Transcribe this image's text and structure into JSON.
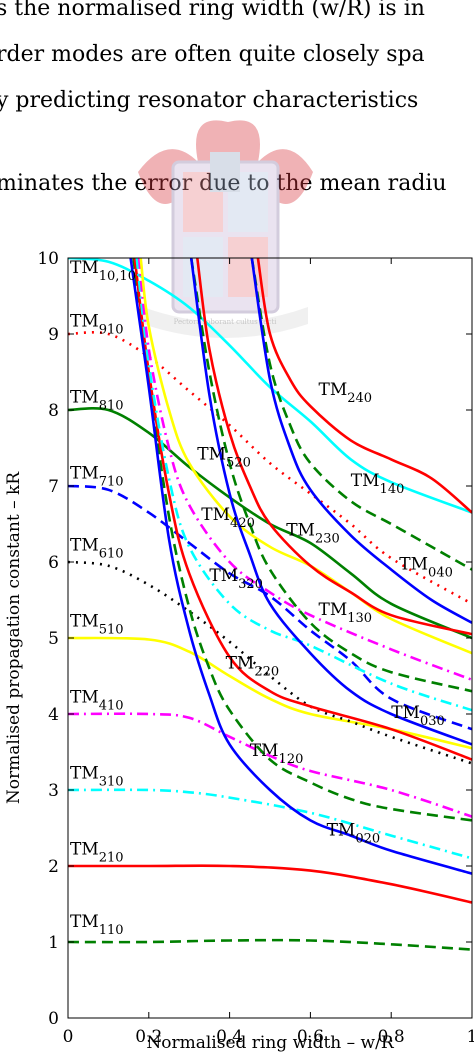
{
  "text_lines": [
    "s the normalised ring width (w/R) is in",
    "rder modes are often quite closely spa",
    "y predicting resonator characteristics",
    "minates the error due to the mean radiu"
  ],
  "watermark_motto": "Pectora roborant cultus recti",
  "chart_data": {
    "type": "line",
    "title": "",
    "xlabel": "Normalised ring width – w/R",
    "ylabel": "Normalised propagation constant – kR",
    "xlim": [
      0,
      1
    ],
    "ylim": [
      0,
      10
    ],
    "x_ticks": [
      "0",
      "0.2",
      "0.4",
      "0.6",
      "0.8",
      "1"
    ],
    "y_ticks": [
      "0",
      "1",
      "2",
      "3",
      "4",
      "5",
      "6",
      "7",
      "8",
      "9",
      "10"
    ],
    "grid": false,
    "colors": {
      "1": "#008000",
      "2": "#ff0000",
      "3": "#00ffff",
      "4": "#ff00ff",
      "5": "#ffff00",
      "6": "#000000",
      "7": "#0000ff",
      "8": "#008000",
      "9": "#ff0000",
      "10": "#00ffff"
    },
    "series": [
      {
        "name": "TM110",
        "main": "TM",
        "sub": "110",
        "m": 1,
        "style": "dashed",
        "points": [
          [
            0,
            1.0
          ],
          [
            0.2,
            1.0
          ],
          [
            0.4,
            1.02
          ],
          [
            0.6,
            1.02
          ],
          [
            0.8,
            0.97
          ],
          [
            1.0,
            0.9
          ]
        ]
      },
      {
        "name": "TM210",
        "main": "TM",
        "sub": "210",
        "m": 2,
        "style": "solid",
        "points": [
          [
            0,
            2.0
          ],
          [
            0.2,
            2.0
          ],
          [
            0.4,
            2.0
          ],
          [
            0.6,
            1.94
          ],
          [
            0.8,
            1.76
          ],
          [
            1.0,
            1.52
          ]
        ]
      },
      {
        "name": "TM310",
        "main": "TM",
        "sub": "310",
        "m": 3,
        "style": "dashdot",
        "points": [
          [
            0,
            3.0
          ],
          [
            0.2,
            3.0
          ],
          [
            0.3,
            2.97
          ],
          [
            0.4,
            2.9
          ],
          [
            0.6,
            2.7
          ],
          [
            0.8,
            2.4
          ],
          [
            1.0,
            2.1
          ]
        ]
      },
      {
        "name": "TM410",
        "main": "TM",
        "sub": "410",
        "m": 4,
        "style": "dashdot",
        "points": [
          [
            0,
            4.0
          ],
          [
            0.2,
            4.0
          ],
          [
            0.3,
            3.95
          ],
          [
            0.4,
            3.7
          ],
          [
            0.5,
            3.45
          ],
          [
            0.6,
            3.25
          ],
          [
            0.8,
            3.0
          ],
          [
            1.0,
            2.65
          ]
        ]
      },
      {
        "name": "TM510",
        "main": "TM",
        "sub": "510",
        "m": 5,
        "style": "solid",
        "points": [
          [
            0,
            5.0
          ],
          [
            0.2,
            4.98
          ],
          [
            0.3,
            4.82
          ],
          [
            0.4,
            4.5
          ],
          [
            0.5,
            4.2
          ],
          [
            0.6,
            4.0
          ],
          [
            0.8,
            3.8
          ],
          [
            1.0,
            3.55
          ]
        ]
      },
      {
        "name": "TM610",
        "main": "TM",
        "sub": "610",
        "m": 6,
        "style": "dotted",
        "points": [
          [
            0,
            6.0
          ],
          [
            0.1,
            5.95
          ],
          [
            0.2,
            5.7
          ],
          [
            0.3,
            5.35
          ],
          [
            0.4,
            4.95
          ],
          [
            0.5,
            4.5
          ],
          [
            0.6,
            4.1
          ],
          [
            0.7,
            3.9
          ],
          [
            0.8,
            3.7
          ],
          [
            1.0,
            3.35
          ]
        ]
      },
      {
        "name": "TM710",
        "main": "TM",
        "sub": "710",
        "m": 7,
        "style": "dashed",
        "points": [
          [
            0,
            7.0
          ],
          [
            0.1,
            6.95
          ],
          [
            0.2,
            6.65
          ],
          [
            0.3,
            6.25
          ],
          [
            0.4,
            5.85
          ],
          [
            0.5,
            5.55
          ],
          [
            0.6,
            5.1
          ],
          [
            0.7,
            4.7
          ],
          [
            0.8,
            4.2
          ],
          [
            1.0,
            3.8
          ]
        ]
      },
      {
        "name": "TM810",
        "main": "TM",
        "sub": "810",
        "m": 8,
        "style": "solid",
        "points": [
          [
            0,
            8.0
          ],
          [
            0.1,
            8.0
          ],
          [
            0.2,
            7.7
          ],
          [
            0.3,
            7.25
          ],
          [
            0.4,
            6.85
          ],
          [
            0.5,
            6.5
          ],
          [
            0.6,
            6.25
          ],
          [
            0.7,
            5.85
          ],
          [
            0.8,
            5.45
          ],
          [
            1.0,
            5.0
          ]
        ]
      },
      {
        "name": "TM910",
        "main": "TM",
        "sub": "910",
        "m": 9,
        "style": "dotted",
        "points": [
          [
            0,
            9.0
          ],
          [
            0.1,
            9.0
          ],
          [
            0.2,
            8.7
          ],
          [
            0.3,
            8.25
          ],
          [
            0.4,
            7.8
          ],
          [
            0.5,
            7.3
          ],
          [
            0.6,
            6.9
          ],
          [
            0.7,
            6.5
          ],
          [
            0.8,
            6.05
          ],
          [
            1.0,
            5.45
          ]
        ]
      },
      {
        "name": "TM10,10",
        "main": "TM",
        "sub": "10,10",
        "m": 10,
        "style": "solid",
        "points": [
          [
            0,
            10.0
          ],
          [
            0.1,
            9.95
          ],
          [
            0.2,
            9.7
          ],
          [
            0.3,
            9.35
          ],
          [
            0.4,
            8.85
          ],
          [
            0.5,
            8.3
          ],
          [
            0.6,
            7.85
          ],
          [
            0.7,
            7.35
          ],
          [
            0.8,
            7.05
          ],
          [
            1.0,
            6.65
          ]
        ]
      },
      {
        "name": "TM120",
        "main": "TM",
        "sub": "120",
        "m": 1,
        "style": "dashed",
        "points": [
          [
            0.162,
            10
          ],
          [
            0.2,
            8.4
          ],
          [
            0.25,
            6.6
          ],
          [
            0.3,
            5.4
          ],
          [
            0.35,
            4.6
          ],
          [
            0.4,
            4.05
          ],
          [
            0.5,
            3.4
          ],
          [
            0.6,
            3.1
          ],
          [
            0.7,
            2.88
          ],
          [
            0.8,
            2.75
          ],
          [
            1.0,
            2.6
          ]
        ]
      },
      {
        "name": "TM220",
        "main": "TM",
        "sub": "220",
        "m": 2,
        "style": "solid",
        "points": [
          [
            0.165,
            10
          ],
          [
            0.2,
            8.5
          ],
          [
            0.25,
            6.9
          ],
          [
            0.3,
            5.85
          ],
          [
            0.4,
            4.75
          ],
          [
            0.5,
            4.3
          ],
          [
            0.6,
            4.1
          ],
          [
            0.8,
            3.8
          ],
          [
            1.0,
            3.4
          ]
        ]
      },
      {
        "name": "TM320",
        "main": "TM",
        "sub": "320",
        "m": 3,
        "style": "dashdot",
        "points": [
          [
            0.17,
            10
          ],
          [
            0.2,
            8.6
          ],
          [
            0.25,
            7.1
          ],
          [
            0.3,
            6.2
          ],
          [
            0.4,
            5.45
          ],
          [
            0.5,
            5.1
          ],
          [
            0.6,
            4.9
          ],
          [
            0.8,
            4.4
          ],
          [
            1.0,
            4.05
          ]
        ]
      },
      {
        "name": "TM420",
        "main": "TM",
        "sub": "420",
        "m": 4,
        "style": "dashdot",
        "points": [
          [
            0.176,
            10
          ],
          [
            0.2,
            8.8
          ],
          [
            0.25,
            7.5
          ],
          [
            0.3,
            6.75
          ],
          [
            0.4,
            6.0
          ],
          [
            0.5,
            5.6
          ],
          [
            0.6,
            5.3
          ],
          [
            0.8,
            4.85
          ],
          [
            1.0,
            4.45
          ]
        ]
      },
      {
        "name": "TM520",
        "main": "TM",
        "sub": "520",
        "m": 5,
        "style": "solid",
        "points": [
          [
            0.18,
            10
          ],
          [
            0.2,
            9.1
          ],
          [
            0.25,
            8.0
          ],
          [
            0.3,
            7.3
          ],
          [
            0.4,
            6.6
          ],
          [
            0.5,
            6.2
          ],
          [
            0.6,
            5.95
          ],
          [
            0.7,
            5.6
          ],
          [
            0.8,
            5.25
          ],
          [
            1.0,
            4.8
          ]
        ]
      },
      {
        "name": "TM020",
        "main": "TM",
        "sub": "020",
        "m": 7,
        "style": "solid",
        "points": [
          [
            0.155,
            10
          ],
          [
            0.2,
            8.3
          ],
          [
            0.25,
            6.3
          ],
          [
            0.3,
            5.1
          ],
          [
            0.35,
            4.25
          ],
          [
            0.4,
            3.6
          ],
          [
            0.5,
            3.0
          ],
          [
            0.6,
            2.6
          ],
          [
            0.7,
            2.4
          ],
          [
            0.8,
            2.2
          ],
          [
            1.0,
            1.9
          ]
        ]
      },
      {
        "name": "TM130",
        "main": "TM",
        "sub": "130",
        "m": 1,
        "style": "dashed",
        "points": [
          [
            0.305,
            10
          ],
          [
            0.35,
            8.5
          ],
          [
            0.4,
            7.3
          ],
          [
            0.45,
            6.5
          ],
          [
            0.5,
            5.9
          ],
          [
            0.6,
            5.2
          ],
          [
            0.7,
            4.8
          ],
          [
            0.8,
            4.55
          ],
          [
            1.0,
            4.3
          ]
        ]
      },
      {
        "name": "TM230",
        "main": "TM",
        "sub": "230",
        "m": 2,
        "style": "solid",
        "points": [
          [
            0.32,
            10
          ],
          [
            0.35,
            8.8
          ],
          [
            0.4,
            7.7
          ],
          [
            0.45,
            7.0
          ],
          [
            0.5,
            6.5
          ],
          [
            0.6,
            5.95
          ],
          [
            0.7,
            5.6
          ],
          [
            0.8,
            5.3
          ],
          [
            1.0,
            5.05
          ]
        ]
      },
      {
        "name": "TM030",
        "main": "TM",
        "sub": "030",
        "m": 7,
        "style": "solid",
        "points": [
          [
            0.305,
            10
          ],
          [
            0.35,
            8.2
          ],
          [
            0.4,
            6.9
          ],
          [
            0.45,
            6.1
          ],
          [
            0.5,
            5.45
          ],
          [
            0.6,
            4.8
          ],
          [
            0.7,
            4.3
          ],
          [
            0.8,
            4.0
          ],
          [
            1.0,
            3.6
          ]
        ]
      },
      {
        "name": "TM140",
        "main": "TM",
        "sub": "140",
        "m": 1,
        "style": "dashed",
        "points": [
          [
            0.455,
            10
          ],
          [
            0.5,
            8.6
          ],
          [
            0.55,
            7.8
          ],
          [
            0.6,
            7.3
          ],
          [
            0.7,
            6.8
          ],
          [
            0.8,
            6.5
          ],
          [
            0.9,
            6.2
          ],
          [
            1.0,
            5.9
          ]
        ]
      },
      {
        "name": "TM240",
        "main": "TM",
        "sub": "240",
        "m": 2,
        "style": "solid",
        "points": [
          [
            0.47,
            10
          ],
          [
            0.5,
            9.0
          ],
          [
            0.55,
            8.4
          ],
          [
            0.6,
            8.05
          ],
          [
            0.7,
            7.6
          ],
          [
            0.8,
            7.35
          ],
          [
            0.9,
            7.1
          ],
          [
            1.0,
            6.65
          ]
        ]
      },
      {
        "name": "TM040",
        "main": "TM",
        "sub": "040",
        "m": 7,
        "style": "solid",
        "points": [
          [
            0.455,
            10
          ],
          [
            0.5,
            8.4
          ],
          [
            0.55,
            7.5
          ],
          [
            0.6,
            6.95
          ],
          [
            0.7,
            6.35
          ],
          [
            0.8,
            5.9
          ],
          [
            0.9,
            5.5
          ],
          [
            1.0,
            5.2
          ]
        ]
      }
    ],
    "annotations": [
      {
        "main": "TM",
        "sub": "10,10",
        "x": 0.005,
        "y": 9.8
      },
      {
        "main": "TM",
        "sub": "910",
        "x": 0.005,
        "y": 9.1
      },
      {
        "main": "TM",
        "sub": "810",
        "x": 0.005,
        "y": 8.1
      },
      {
        "main": "TM",
        "sub": "710",
        "x": 0.005,
        "y": 7.1
      },
      {
        "main": "TM",
        "sub": "610",
        "x": 0.005,
        "y": 6.15
      },
      {
        "main": "TM",
        "sub": "510",
        "x": 0.005,
        "y": 5.15
      },
      {
        "main": "TM",
        "sub": "410",
        "x": 0.005,
        "y": 4.15
      },
      {
        "main": "TM",
        "sub": "310",
        "x": 0.005,
        "y": 3.15
      },
      {
        "main": "TM",
        "sub": "210",
        "x": 0.005,
        "y": 2.15
      },
      {
        "main": "TM",
        "sub": "110",
        "x": 0.005,
        "y": 1.2
      },
      {
        "main": "TM",
        "sub": "240",
        "x": 0.62,
        "y": 8.2
      },
      {
        "main": "TM",
        "sub": "520",
        "x": 0.32,
        "y": 7.35
      },
      {
        "main": "TM",
        "sub": "140",
        "x": 0.7,
        "y": 7.0
      },
      {
        "main": "TM",
        "sub": "420",
        "x": 0.33,
        "y": 6.55
      },
      {
        "main": "TM",
        "sub": "230",
        "x": 0.54,
        "y": 6.35
      },
      {
        "main": "TM",
        "sub": "040",
        "x": 0.82,
        "y": 5.9
      },
      {
        "main": "TM",
        "sub": "320",
        "x": 0.35,
        "y": 5.75
      },
      {
        "main": "TM",
        "sub": "130",
        "x": 0.62,
        "y": 5.3
      },
      {
        "main": "TM",
        "sub": "220",
        "x": 0.39,
        "y": 4.6
      },
      {
        "main": "TM",
        "sub": "030",
        "x": 0.8,
        "y": 3.95
      },
      {
        "main": "TM",
        "sub": "120",
        "x": 0.45,
        "y": 3.45
      },
      {
        "main": "TM",
        "sub": "020",
        "x": 0.64,
        "y": 2.4
      }
    ]
  }
}
